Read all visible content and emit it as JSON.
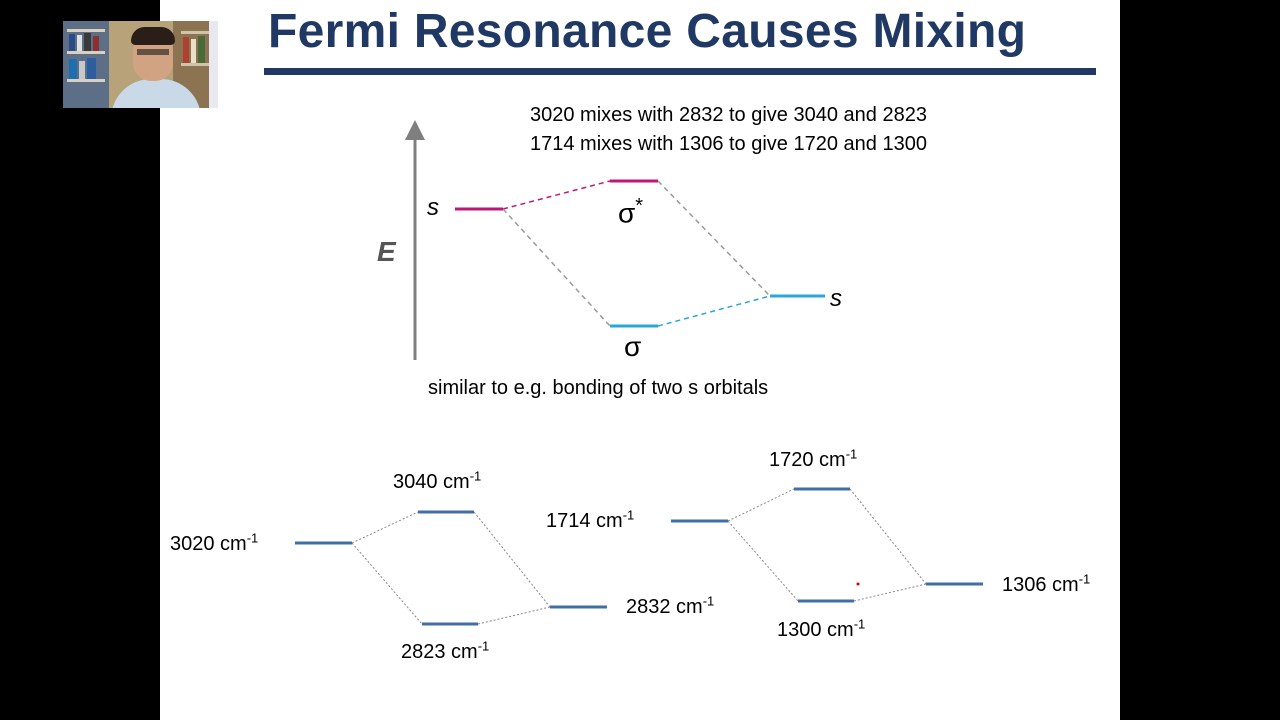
{
  "slide": {
    "title": "Fermi Resonance Causes Mixing",
    "mix_lines": [
      "3020 mixes with 2832 to give 3040 and 2823",
      "1714 mixes with 1306 to give 1720 and 1300"
    ],
    "mo_diagram": {
      "axis_label": "E",
      "left_orbital": "s",
      "right_orbital": "s",
      "antibonding": "σ",
      "antibonding_sup": "*",
      "bonding": "σ"
    },
    "caption": "similar to e.g. bonding of two s orbitals",
    "unit_exponent": "-1",
    "levels": {
      "left": [
        {
          "value": "3020 cm"
        },
        {
          "value": "3040 cm"
        },
        {
          "value": "2823 cm"
        },
        {
          "value": "2832 cm"
        }
      ],
      "right": [
        {
          "value": "1714 cm"
        },
        {
          "value": "1720 cm"
        },
        {
          "value": "1300 cm"
        },
        {
          "value": "1306 cm"
        }
      ]
    },
    "colors": {
      "title": "#1f3864",
      "magenta": "#c0157a",
      "cyan": "#2aa7d8",
      "level_blue": "#3f6fa5",
      "gray": "#999999"
    }
  },
  "webcam": {
    "icon": "presenter-video-feed"
  }
}
